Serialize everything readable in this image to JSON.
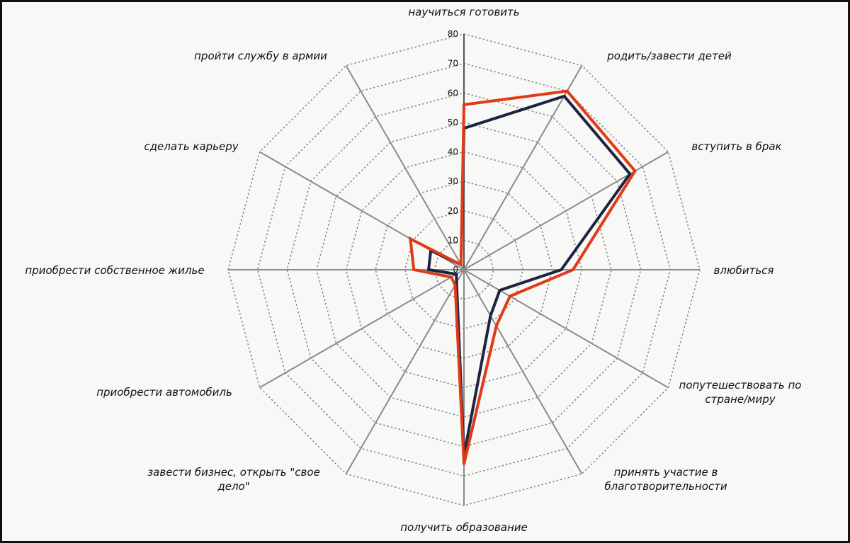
{
  "chart_data": {
    "type": "radar",
    "title": "",
    "rlim": [
      0,
      80
    ],
    "ticks": [
      "0",
      "10",
      "20",
      "30",
      "40",
      "50",
      "60",
      "70",
      "80"
    ],
    "tick_values": [
      0,
      10,
      20,
      30,
      40,
      50,
      60,
      70,
      80
    ],
    "grid": true,
    "categories": [
      "научиться готовить",
      "родить/завести детей",
      "вступить в брак",
      "влюбиться",
      "попутешествовать по стране/миру",
      "принять участие в благотворительности",
      "получить образование",
      "завести бизнес, открыть \"свое дело\"",
      "приобрести автомобиль",
      "приобрести собственное жилье",
      "сделать карьеру",
      "пройти службу в армии"
    ],
    "series": [
      {
        "values": [
          48,
          68,
          65,
          33,
          14,
          18,
          63,
          5,
          3,
          12,
          13,
          2
        ],
        "color": "#1b2440"
      },
      {
        "values": [
          56,
          70,
          67,
          37,
          18,
          22,
          66,
          6,
          5,
          17,
          21,
          2
        ],
        "color": "#e03a16"
      }
    ]
  }
}
